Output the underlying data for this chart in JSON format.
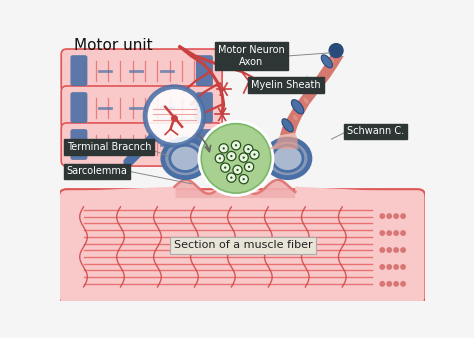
{
  "background_color": "#f5f5f5",
  "labels": {
    "motor_unit": "Motor unit",
    "motor_neuron_axon": "Motor Neuron\nAxon",
    "myelin_sheath": "Myelin Sheath",
    "schwann_c": "Schwann C.",
    "terminal_branch": "Terminal Bracnch",
    "sarcolemma": "Sarcolemma",
    "muscle_fiber": "Section of a muscle fiber"
  },
  "colors": {
    "bg": "#f5f5f5",
    "muscle_light": "#f9c8c8",
    "muscle_mid": "#f0a0a0",
    "muscle_stripe": "#e05555",
    "muscle_dark": "#cc4444",
    "muscle_end_dots": "#d06060",
    "blue_band": "#4a6fa5",
    "blue_dark": "#2a4a7a",
    "nerve_pink": "#d47870",
    "nerve_light": "#e8a090",
    "nerve_dark": "#b05848",
    "terminal_gray": "#8898b8",
    "terminal_dark": "#6878a0",
    "terminal_light": "#aab8d0",
    "vesicle_green": "#7ab868",
    "vesicle_light": "#a8d090",
    "vesicle_dot_dark": "#2a5020",
    "vesicle_dot_white": "#e8f8e0",
    "red_nerve": "#c84040",
    "magnifier_blue": "#4a6fa5",
    "label_dark_bg": "#2d3535",
    "label_light_bg": "#e8e4d8",
    "sarcolemma_wave": "#e07878",
    "wave_fill": "#f0b0b0"
  }
}
